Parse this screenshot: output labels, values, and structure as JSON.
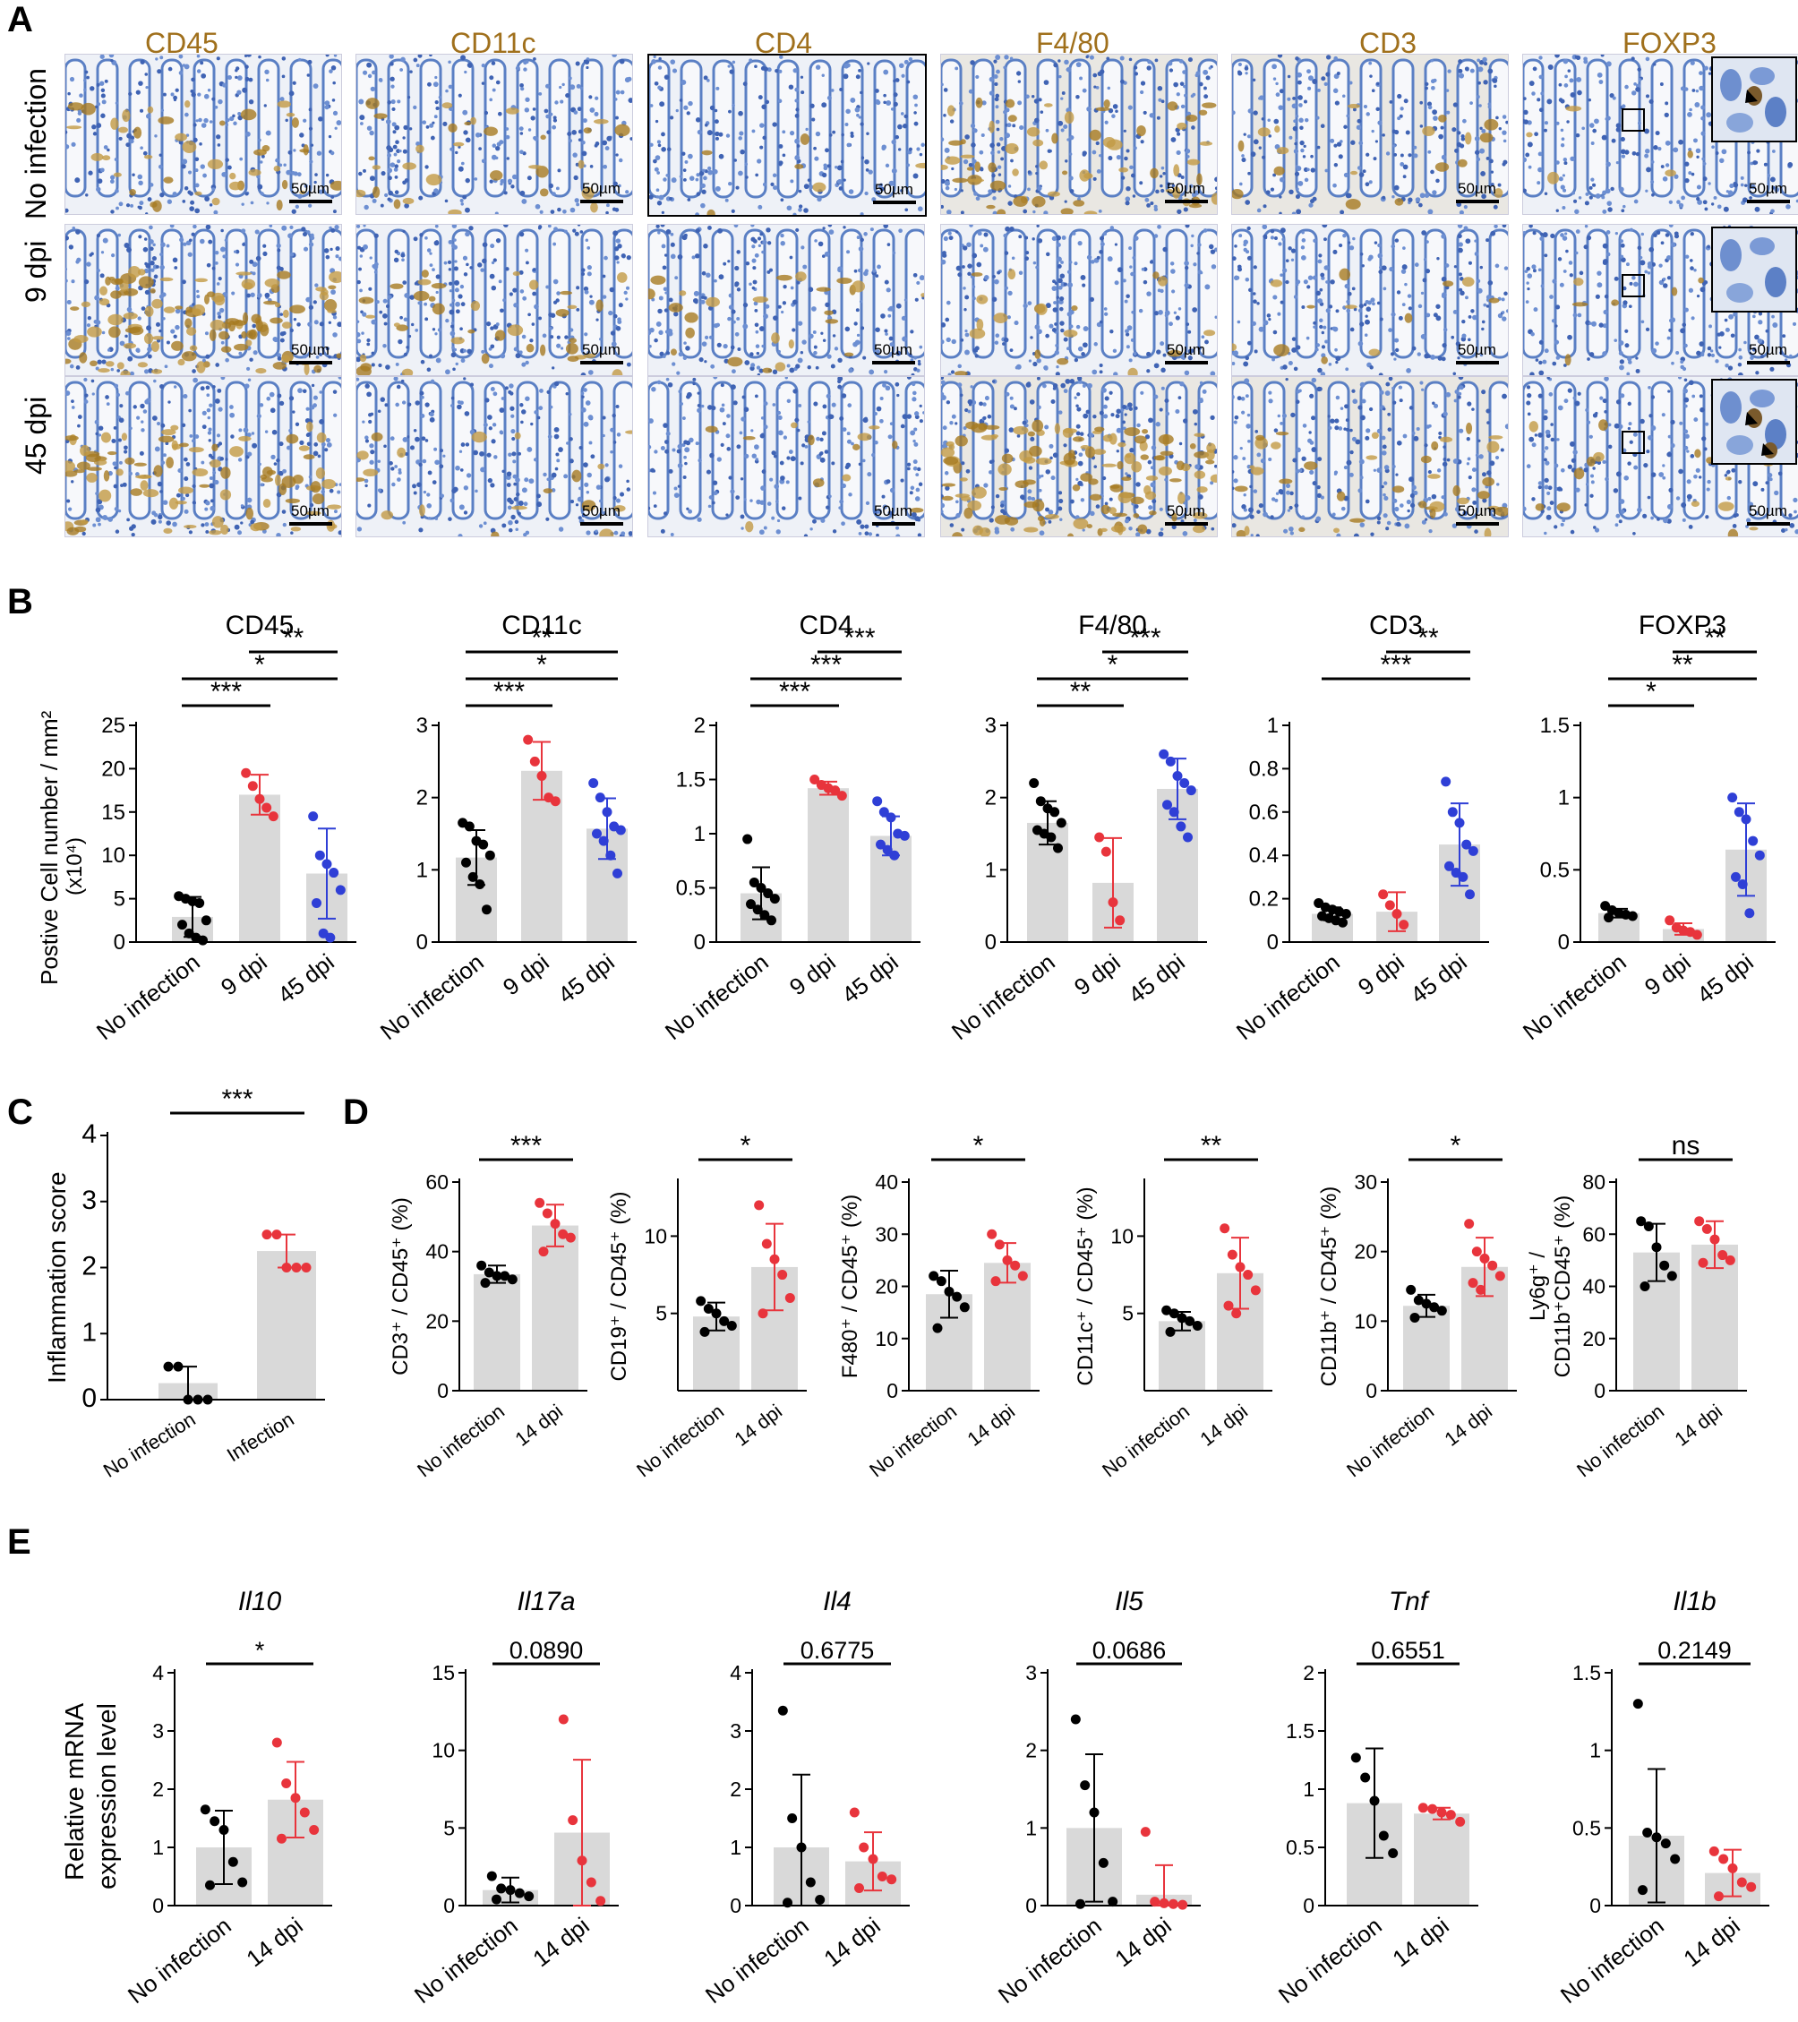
{
  "panel_letters": [
    "A",
    "B",
    "C",
    "D",
    "E"
  ],
  "panel_a": {
    "stains": [
      "CD45",
      "CD11c",
      "CD4",
      "F4/80",
      "CD3",
      "FOXP3"
    ],
    "conditions": [
      "No infection",
      "9 dpi",
      "45 dpi"
    ],
    "scale_bar_label": "50µm",
    "stain_color": "#a0701c"
  },
  "panel_b": {
    "ylabel_line1": "Postive Cell number / mm²",
    "ylabel_line2": "(x10⁴)",
    "groups": [
      "No infection",
      "9 dpi",
      "45 dpi"
    ]
  },
  "panel_c": {
    "ylabel": "Inflammation score",
    "groups": [
      "No infection",
      "Infection"
    ]
  },
  "panel_e": {
    "ylabel_line1": "Relative mRNA",
    "ylabel_line2": "expression level",
    "groups": [
      "No infection",
      "14 dpi"
    ]
  },
  "colors": {
    "group_black": "#000000",
    "group_red": "#e8343c",
    "group_blue": "#2f3fd6",
    "bar_fill": "#d9d9d9"
  },
  "chart_data": [
    {
      "id": "B-CD45",
      "panel": "B",
      "type": "bar",
      "title": "CD45",
      "categories": [
        "No infection",
        "9 dpi",
        "45 dpi"
      ],
      "ylim": [
        0,
        25
      ],
      "yticks": [
        0,
        5,
        10,
        15,
        20,
        25
      ],
      "values": [
        2.9,
        17,
        7.9
      ],
      "sd": [
        2.3,
        2.3,
        5.2
      ],
      "points": [
        [
          5.3,
          5.0,
          4.7,
          4.5,
          2.5,
          2.0,
          1.0,
          0.5,
          0.2
        ],
        [
          19.5,
          18.0,
          16.5,
          15.5,
          14.5
        ],
        [
          14.5,
          10.0,
          9.0,
          8.0,
          6.0,
          4.5,
          1.0,
          0.5
        ]
      ],
      "sig": [
        {
          "a": 0,
          "b": 1,
          "label": "***"
        },
        {
          "a": 0,
          "b": 2,
          "label": "*"
        },
        {
          "a": 1,
          "b": 2,
          "label": "**"
        }
      ]
    },
    {
      "id": "B-CD11c",
      "panel": "B",
      "type": "bar",
      "title": "CD11c",
      "categories": [
        "No infection",
        "9 dpi",
        "45 dpi"
      ],
      "ylim": [
        0,
        3
      ],
      "yticks": [
        0,
        1,
        2,
        3
      ],
      "values": [
        1.17,
        2.37,
        1.57
      ],
      "sd": [
        0.38,
        0.4,
        0.42
      ],
      "points": [
        [
          1.65,
          1.6,
          1.4,
          1.35,
          1.2,
          1.1,
          0.9,
          0.8,
          0.45
        ],
        [
          2.8,
          2.5,
          2.3,
          2.0,
          1.95
        ],
        [
          2.2,
          2.0,
          1.8,
          1.6,
          1.55,
          1.5,
          1.4,
          1.2,
          0.95
        ]
      ],
      "sig": [
        {
          "a": 0,
          "b": 1,
          "label": "***"
        },
        {
          "a": 0,
          "b": 2,
          "label": "*"
        },
        {
          "a": 0,
          "b": 2,
          "label": "**"
        }
      ]
    },
    {
      "id": "B-CD4",
      "panel": "B",
      "type": "bar",
      "title": "CD4",
      "categories": [
        "No infection",
        "9 dpi",
        "45 dpi"
      ],
      "ylim": [
        0,
        2
      ],
      "yticks": [
        0,
        0.5,
        1,
        1.5,
        2
      ],
      "values": [
        0.45,
        1.42,
        0.98
      ],
      "sd": [
        0.24,
        0.06,
        0.18
      ],
      "points": [
        [
          0.95,
          0.55,
          0.5,
          0.45,
          0.4,
          0.35,
          0.3,
          0.25,
          0.2
        ],
        [
          1.5,
          1.45,
          1.42,
          1.4,
          1.35
        ],
        [
          1.3,
          1.2,
          1.15,
          1.0,
          0.98,
          0.9,
          0.85,
          0.8
        ]
      ],
      "sig": [
        {
          "a": 0,
          "b": 1,
          "label": "***"
        },
        {
          "a": 0,
          "b": 2,
          "label": "***"
        },
        {
          "a": 1,
          "b": 2,
          "label": "***"
        }
      ]
    },
    {
      "id": "B-F4/80",
      "panel": "B",
      "type": "bar",
      "title": "F4/80",
      "categories": [
        "No infection",
        "9 dpi",
        "45 dpi"
      ],
      "ylim": [
        0,
        3
      ],
      "yticks": [
        0,
        1,
        2,
        3
      ],
      "values": [
        1.65,
        0.82,
        2.12
      ],
      "sd": [
        0.3,
        0.62,
        0.42
      ],
      "points": [
        [
          2.2,
          1.95,
          1.85,
          1.8,
          1.65,
          1.55,
          1.5,
          1.45,
          1.3
        ],
        [
          1.45,
          1.25,
          0.55,
          0.3
        ],
        [
          2.6,
          2.5,
          2.3,
          2.2,
          2.1,
          1.9,
          1.8,
          1.6,
          1.45
        ]
      ],
      "sig": [
        {
          "a": 0,
          "b": 1,
          "label": "**"
        },
        {
          "a": 0,
          "b": 2,
          "label": "*"
        },
        {
          "a": 1,
          "b": 2,
          "label": "***"
        }
      ]
    },
    {
      "id": "B-CD3",
      "panel": "B",
      "type": "bar",
      "title": "CD3",
      "categories": [
        "No infection",
        "9 dpi",
        "45 dpi"
      ],
      "ylim": [
        0,
        1
      ],
      "yticks": [
        0,
        0.2,
        0.4,
        0.6,
        0.8,
        1
      ],
      "values": [
        0.13,
        0.14,
        0.45
      ],
      "sd": [
        0.03,
        0.09,
        0.19
      ],
      "points": [
        [
          0.18,
          0.16,
          0.15,
          0.14,
          0.13,
          0.12,
          0.11,
          0.1,
          0.09
        ],
        [
          0.22,
          0.17,
          0.13,
          0.08
        ],
        [
          0.74,
          0.6,
          0.55,
          0.45,
          0.42,
          0.35,
          0.32,
          0.3,
          0.22
        ]
      ],
      "sig": [
        {
          "a": 0,
          "b": 2,
          "label": "***"
        },
        {
          "a": 1,
          "b": 2,
          "label": "**"
        }
      ]
    },
    {
      "id": "B-FOXP3",
      "panel": "B",
      "type": "bar",
      "title": "FOXP3",
      "categories": [
        "No infection",
        "9 dpi",
        "45 dpi"
      ],
      "ylim": [
        0,
        1.5
      ],
      "yticks": [
        0,
        0.5,
        1,
        1.5
      ],
      "values": [
        0.2,
        0.09,
        0.64
      ],
      "sd": [
        0.03,
        0.04,
        0.32
      ],
      "points": [
        [
          0.25,
          0.22,
          0.2,
          0.19,
          0.18,
          0.17
        ],
        [
          0.15,
          0.1,
          0.08,
          0.07,
          0.05
        ],
        [
          1.0,
          0.9,
          0.85,
          0.7,
          0.6,
          0.45,
          0.4,
          0.2
        ]
      ],
      "sig": [
        {
          "a": 0,
          "b": 1,
          "label": "*"
        },
        {
          "a": 0,
          "b": 2,
          "label": "**"
        },
        {
          "a": 1,
          "b": 2,
          "label": "**"
        }
      ]
    },
    {
      "id": "C",
      "panel": "C",
      "type": "bar",
      "title": "",
      "categories": [
        "No infection",
        "Infection"
      ],
      "ylim": [
        0,
        4
      ],
      "yticks": [
        0,
        1,
        2,
        3,
        4
      ],
      "values": [
        0.25,
        2.25
      ],
      "sd": [
        0.25,
        0.25
      ],
      "points": [
        [
          0.5,
          0.5,
          0,
          0,
          0
        ],
        [
          2.5,
          2.5,
          2.0,
          2.0,
          2.0
        ]
      ],
      "sig": [
        {
          "a": 0,
          "b": 1,
          "label": "***"
        }
      ]
    },
    {
      "id": "D-CD3",
      "panel": "D",
      "type": "bar",
      "ylabel": "CD3⁺ / CD45⁺ (%)",
      "categories": [
        "No infection",
        "14 dpi"
      ],
      "ylim": [
        0,
        60
      ],
      "yticks": [
        0,
        20,
        40,
        60
      ],
      "values": [
        33.5,
        47.5
      ],
      "sd": [
        2.5,
        6
      ],
      "points": [
        [
          36,
          34,
          33,
          33,
          32,
          31
        ],
        [
          54,
          51,
          48,
          45,
          44,
          40
        ]
      ],
      "sig": [
        {
          "a": 0,
          "b": 1,
          "label": "***"
        }
      ]
    },
    {
      "id": "D-CD19",
      "panel": "D",
      "type": "bar",
      "ylabel": "CD19⁺ / CD45⁺ (%)",
      "categories": [
        "No infection",
        "14 dpi"
      ],
      "ylim": [
        0,
        13.5
      ],
      "yticks": [
        5,
        10
      ],
      "values": [
        4.8,
        8
      ],
      "sd": [
        0.9,
        2.8
      ],
      "points": [
        [
          5.8,
          5.3,
          5.0,
          4.5,
          4.2,
          3.8
        ],
        [
          12.0,
          9.5,
          8.5,
          7.5,
          6.0,
          5.0
        ]
      ],
      "sig": [
        {
          "a": 0,
          "b": 1,
          "label": "*"
        }
      ]
    },
    {
      "id": "D-F480",
      "panel": "D",
      "type": "bar",
      "ylabel": "F480⁺ / CD45⁺ (%)",
      "categories": [
        "No infection",
        "14 dpi"
      ],
      "ylim": [
        0,
        40
      ],
      "yticks": [
        0,
        10,
        20,
        30,
        40
      ],
      "values": [
        18.5,
        24.5
      ],
      "sd": [
        4.5,
        3.8
      ],
      "points": [
        [
          22,
          21,
          19,
          18,
          16,
          12
        ],
        [
          30,
          28,
          25,
          24,
          22,
          21
        ]
      ],
      "sig": [
        {
          "a": 0,
          "b": 1,
          "label": "*"
        }
      ]
    },
    {
      "id": "D-CD11c",
      "panel": "D",
      "type": "bar",
      "ylabel": "CD11c⁺ / CD45⁺ (%)",
      "categories": [
        "No infection",
        "14 dpi"
      ],
      "ylim": [
        0,
        13.5
      ],
      "yticks": [
        5,
        10
      ],
      "values": [
        4.5,
        7.6
      ],
      "sd": [
        0.6,
        2.3
      ],
      "points": [
        [
          5.2,
          5.0,
          4.7,
          4.5,
          4.2,
          3.8
        ],
        [
          10.5,
          8.8,
          8.0,
          7.5,
          6.5,
          5.5,
          5.0
        ]
      ],
      "sig": [
        {
          "a": 0,
          "b": 1,
          "label": "**"
        }
      ]
    },
    {
      "id": "D-CD11b",
      "panel": "D",
      "type": "bar",
      "ylabel": "CD11b⁺ / CD45⁺ (%)",
      "categories": [
        "No infection",
        "14 dpi"
      ],
      "ylim": [
        0,
        30
      ],
      "yticks": [
        0,
        10,
        20,
        30
      ],
      "values": [
        12.2,
        17.8
      ],
      "sd": [
        1.6,
        4.2
      ],
      "points": [
        [
          14.5,
          13,
          12.5,
          12,
          11.5,
          10.5
        ],
        [
          24,
          20,
          19,
          18,
          16.5,
          15.5,
          14.5
        ]
      ],
      "sig": [
        {
          "a": 0,
          "b": 1,
          "label": "*"
        }
      ]
    },
    {
      "id": "D-Ly6g",
      "panel": "D",
      "type": "bar",
      "ylabel_line1": "Ly6g⁺ /",
      "ylabel_line2": "CD11b⁺CD45⁺ (%)",
      "categories": [
        "No infection",
        "14 dpi"
      ],
      "ylim": [
        0,
        80
      ],
      "yticks": [
        0,
        20,
        40,
        60,
        80
      ],
      "values": [
        53,
        56
      ],
      "sd": [
        11,
        9
      ],
      "points": [
        [
          65,
          63,
          55,
          48,
          44,
          40
        ],
        [
          65,
          62,
          58,
          52,
          50,
          49
        ]
      ],
      "sig": [
        {
          "a": 0,
          "b": 1,
          "label": "ns"
        }
      ]
    },
    {
      "id": "E-Il10",
      "panel": "E",
      "type": "bar",
      "title": "Il10",
      "categories": [
        "No infection",
        "14 dpi"
      ],
      "ylim": [
        0,
        4
      ],
      "yticks": [
        0,
        1,
        2,
        3,
        4
      ],
      "values": [
        1.0,
        1.82
      ],
      "sd": [
        0.63,
        0.65
      ],
      "points": [
        [
          1.65,
          1.45,
          1.3,
          0.75,
          0.4,
          0.35
        ],
        [
          2.8,
          2.1,
          1.85,
          1.6,
          1.3,
          1.15
        ]
      ],
      "sig": [
        {
          "a": 0,
          "b": 1,
          "label": "*"
        }
      ]
    },
    {
      "id": "E-Il17a",
      "panel": "E",
      "type": "bar",
      "title": "Il17a",
      "categories": [
        "No infection",
        "14 dpi"
      ],
      "ylim": [
        0,
        15
      ],
      "yticks": [
        0,
        5,
        10,
        15
      ],
      "values": [
        1.0,
        4.7
      ],
      "sd": [
        0.8,
        4.7
      ],
      "points": [
        [
          1.9,
          1.1,
          1.0,
          0.8,
          0.6,
          0.4
        ],
        [
          12.0,
          5.5,
          2.9,
          1.5,
          0.3
        ]
      ],
      "sig": [
        {
          "a": 0,
          "b": 1,
          "label": "0.0890"
        }
      ]
    },
    {
      "id": "E-Il4",
      "panel": "E",
      "type": "bar",
      "title": "Il4",
      "categories": [
        "No infection",
        "14 dpi"
      ],
      "ylim": [
        0,
        4
      ],
      "yticks": [
        0,
        1,
        2,
        3,
        4
      ],
      "values": [
        1.0,
        0.76
      ],
      "sd": [
        1.25,
        0.5
      ],
      "points": [
        [
          3.35,
          1.5,
          1.0,
          0.4,
          0.1,
          0.05
        ],
        [
          1.6,
          1.0,
          0.8,
          0.5,
          0.45,
          0.3
        ]
      ],
      "sig": [
        {
          "a": 0,
          "b": 1,
          "label": "0.6775"
        }
      ]
    },
    {
      "id": "E-Il5",
      "panel": "E",
      "type": "bar",
      "title": "Il5",
      "categories": [
        "No infection",
        "14 dpi"
      ],
      "ylim": [
        0,
        3
      ],
      "yticks": [
        0,
        1,
        2,
        3
      ],
      "values": [
        1.0,
        0.14
      ],
      "sd": [
        0.95,
        0.38
      ],
      "points": [
        [
          2.4,
          1.55,
          1.2,
          0.55,
          0.05,
          0.02
        ],
        [
          0.95,
          0.05,
          0.03,
          0.02,
          0.01
        ]
      ],
      "sig": [
        {
          "a": 0,
          "b": 1,
          "label": "0.0686"
        }
      ]
    },
    {
      "id": "E-Tnf",
      "panel": "E",
      "type": "bar",
      "title": "Tnf",
      "categories": [
        "No infection",
        "14 dpi"
      ],
      "ylim": [
        0,
        2
      ],
      "yticks": [
        0,
        0.5,
        1,
        1.5,
        2
      ],
      "values": [
        0.88,
        0.79
      ],
      "sd": [
        0.47,
        0.05
      ],
      "points": [
        [
          1.27,
          1.1,
          0.9,
          0.6,
          0.45
        ],
        [
          0.84,
          0.83,
          0.8,
          0.78,
          0.72
        ]
      ],
      "sig": [
        {
          "a": 0,
          "b": 1,
          "label": "0.6551"
        }
      ]
    },
    {
      "id": "E-Il1b",
      "panel": "E",
      "type": "bar",
      "title": "Il1b",
      "categories": [
        "No infection",
        "14 dpi"
      ],
      "ylim": [
        0,
        1.5
      ],
      "yticks": [
        0,
        0.5,
        1,
        1.5
      ],
      "values": [
        0.45,
        0.21
      ],
      "sd": [
        0.43,
        0.15
      ],
      "points": [
        [
          1.3,
          0.47,
          0.44,
          0.4,
          0.3,
          0.1
        ],
        [
          0.35,
          0.3,
          0.24,
          0.15,
          0.12,
          0.06
        ]
      ],
      "sig": [
        {
          "a": 0,
          "b": 1,
          "label": "0.2149"
        }
      ]
    }
  ]
}
